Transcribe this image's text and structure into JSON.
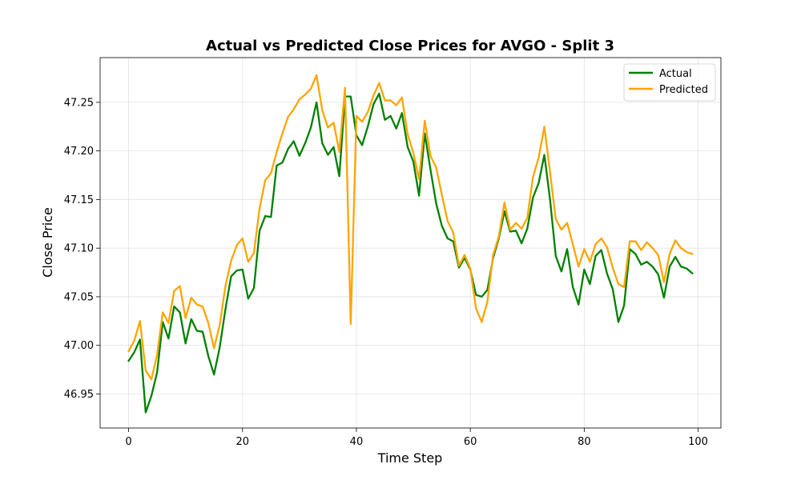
{
  "chart_data": {
    "type": "line",
    "title": "Actual vs Predicted Close Prices for AVGO - Split 3",
    "xlabel": "Time Step",
    "ylabel": "Close Price",
    "xlim": [
      -5,
      104
    ],
    "ylim": [
      46.915,
      47.296
    ],
    "xticks": [
      0,
      20,
      40,
      60,
      80,
      100
    ],
    "yticks": [
      46.95,
      47.0,
      47.05,
      47.1,
      47.15,
      47.2,
      47.25
    ],
    "ytick_labels": [
      "46.95",
      "47.00",
      "47.05",
      "47.10",
      "47.15",
      "47.20",
      "47.25"
    ],
    "grid": true,
    "legend_position": "upper right",
    "x": [
      0,
      1,
      2,
      3,
      4,
      5,
      6,
      7,
      8,
      9,
      10,
      11,
      12,
      13,
      14,
      15,
      16,
      17,
      18,
      19,
      20,
      21,
      22,
      23,
      24,
      25,
      26,
      27,
      28,
      29,
      30,
      31,
      32,
      33,
      34,
      35,
      36,
      37,
      38,
      39,
      40,
      41,
      42,
      43,
      44,
      45,
      46,
      47,
      48,
      49,
      50,
      51,
      52,
      53,
      54,
      55,
      56,
      57,
      58,
      59,
      60,
      61,
      62,
      63,
      64,
      65,
      66,
      67,
      68,
      69,
      70,
      71,
      72,
      73,
      74,
      75,
      76,
      77,
      78,
      79,
      80,
      81,
      82,
      83,
      84,
      85,
      86,
      87,
      88,
      89,
      90,
      91,
      92,
      93,
      94,
      95,
      96,
      97,
      98,
      99
    ],
    "series": [
      {
        "name": "Actual",
        "color": "#008000",
        "values": [
          46.984,
          46.993,
          47.006,
          46.931,
          46.948,
          46.972,
          47.024,
          47.007,
          47.04,
          47.034,
          47.002,
          47.027,
          47.015,
          47.014,
          46.989,
          46.97,
          46.998,
          47.037,
          47.071,
          47.077,
          47.078,
          47.048,
          47.059,
          47.118,
          47.133,
          47.132,
          47.185,
          47.188,
          47.202,
          47.21,
          47.195,
          47.208,
          47.224,
          47.25,
          47.208,
          47.196,
          47.204,
          47.174,
          47.256,
          47.256,
          47.216,
          47.206,
          47.225,
          47.248,
          47.259,
          47.232,
          47.236,
          47.223,
          47.239,
          47.204,
          47.189,
          47.154,
          47.218,
          47.181,
          47.146,
          47.123,
          47.11,
          47.107,
          47.08,
          47.09,
          47.078,
          47.052,
          47.05,
          47.057,
          47.09,
          47.11,
          47.138,
          47.117,
          47.118,
          47.105,
          47.12,
          47.152,
          47.167,
          47.196,
          47.15,
          47.092,
          47.076,
          47.099,
          47.06,
          47.042,
          47.078,
          47.063,
          47.092,
          47.098,
          47.074,
          47.058,
          47.024,
          47.041,
          47.099,
          47.094,
          47.083,
          47.086,
          47.081,
          47.073,
          47.049,
          47.081,
          47.091,
          47.081,
          47.079,
          47.074
        ]
      },
      {
        "name": "Predicted",
        "color": "#FFA500",
        "values": [
          46.994,
          47.005,
          47.025,
          46.974,
          46.965,
          46.99,
          47.034,
          47.023,
          47.056,
          47.061,
          47.028,
          47.049,
          47.042,
          47.04,
          47.023,
          46.997,
          47.021,
          47.061,
          47.087,
          47.103,
          47.11,
          47.086,
          47.095,
          47.141,
          47.17,
          47.177,
          47.199,
          47.218,
          47.235,
          47.243,
          47.253,
          47.258,
          47.264,
          47.278,
          47.242,
          47.224,
          47.229,
          47.199,
          47.265,
          47.022,
          47.236,
          47.23,
          47.24,
          47.257,
          47.27,
          47.252,
          47.252,
          47.247,
          47.255,
          47.217,
          47.198,
          47.171,
          47.231,
          47.195,
          47.183,
          47.155,
          47.128,
          47.116,
          47.082,
          47.093,
          47.079,
          47.038,
          47.024,
          47.045,
          47.093,
          47.112,
          47.147,
          47.119,
          47.126,
          47.12,
          47.131,
          47.173,
          47.193,
          47.225,
          47.178,
          47.13,
          47.119,
          47.126,
          47.104,
          47.081,
          47.099,
          47.086,
          47.104,
          47.11,
          47.101,
          47.08,
          47.063,
          47.06,
          47.107,
          47.107,
          47.098,
          47.106,
          47.1,
          47.093,
          47.065,
          47.094,
          47.108,
          47.1,
          47.096,
          47.094
        ]
      }
    ]
  }
}
